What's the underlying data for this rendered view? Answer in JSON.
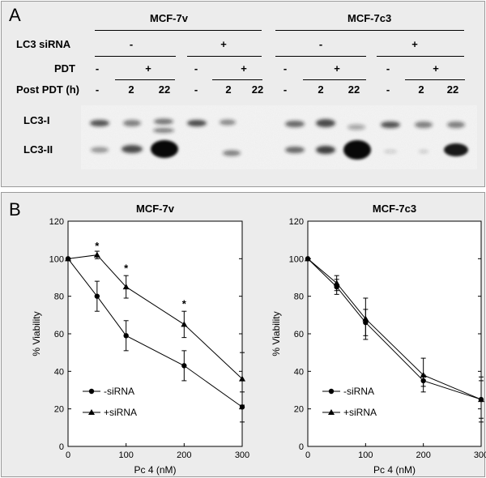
{
  "panel_a": {
    "letter": "A",
    "cell_lines": [
      "MCF-7v",
      "MCF-7c3"
    ],
    "row_labels": {
      "sirna": "LC3 siRNA",
      "pdt": "PDT",
      "post": "Post PDT (h)"
    },
    "sirna_values": [
      "-",
      "+",
      "-",
      "+"
    ],
    "pdt_values": [
      "-",
      "+",
      "-",
      "+",
      "-",
      "+",
      "-",
      "+"
    ],
    "post_values": [
      "-",
      "2",
      "22",
      "-",
      "2",
      "22",
      "-",
      "2",
      "22",
      "-",
      "2",
      "22"
    ],
    "band_labels": [
      "LC3-I",
      "LC3-II"
    ]
  },
  "panel_b": {
    "letter": "B"
  },
  "chart_data": [
    {
      "type": "line",
      "title": "MCF-7v",
      "xlabel": "Pc 4 (nM)",
      "ylabel": "% Viability",
      "xlim": [
        0,
        300
      ],
      "ylim": [
        0,
        120
      ],
      "xticks": [
        0,
        100,
        200,
        300
      ],
      "yticks": [
        0,
        20,
        40,
        60,
        80,
        100,
        120
      ],
      "legend_position": "bottom-left",
      "series": [
        {
          "name": "-siRNA",
          "marker": "circle",
          "x": [
            0,
            50,
            100,
            200,
            300
          ],
          "y": [
            100,
            80,
            59,
            43,
            21
          ],
          "err": [
            0,
            8,
            8,
            8,
            8
          ]
        },
        {
          "name": "+siRNA",
          "marker": "triangle",
          "x": [
            0,
            50,
            100,
            200,
            300
          ],
          "y": [
            100,
            102,
            85,
            65,
            36
          ],
          "err": [
            0,
            2,
            6,
            7,
            14
          ]
        }
      ],
      "annotations": [
        {
          "text": "*",
          "x": 50,
          "y": 105
        },
        {
          "text": "*",
          "x": 100,
          "y": 93
        },
        {
          "text": "*",
          "x": 200,
          "y": 74
        }
      ]
    },
    {
      "type": "line",
      "title": "MCF-7c3",
      "xlabel": "Pc 4 (nM)",
      "ylabel": "% Viability",
      "xlim": [
        0,
        300
      ],
      "ylim": [
        0,
        120
      ],
      "xticks": [
        0,
        100,
        200,
        300
      ],
      "yticks": [
        0,
        20,
        40,
        60,
        80,
        100,
        120
      ],
      "legend_position": "bottom-left",
      "series": [
        {
          "name": "-siRNA",
          "marker": "circle",
          "x": [
            0,
            50,
            100,
            200,
            300
          ],
          "y": [
            100,
            85,
            66,
            35,
            25
          ],
          "err": [
            0,
            4,
            7,
            3,
            10
          ]
        },
        {
          "name": "+siRNA",
          "marker": "triangle",
          "x": [
            0,
            50,
            100,
            200,
            300
          ],
          "y": [
            100,
            87,
            68,
            38,
            25
          ],
          "err": [
            0,
            4,
            11,
            9,
            12
          ]
        }
      ],
      "annotations": []
    }
  ]
}
